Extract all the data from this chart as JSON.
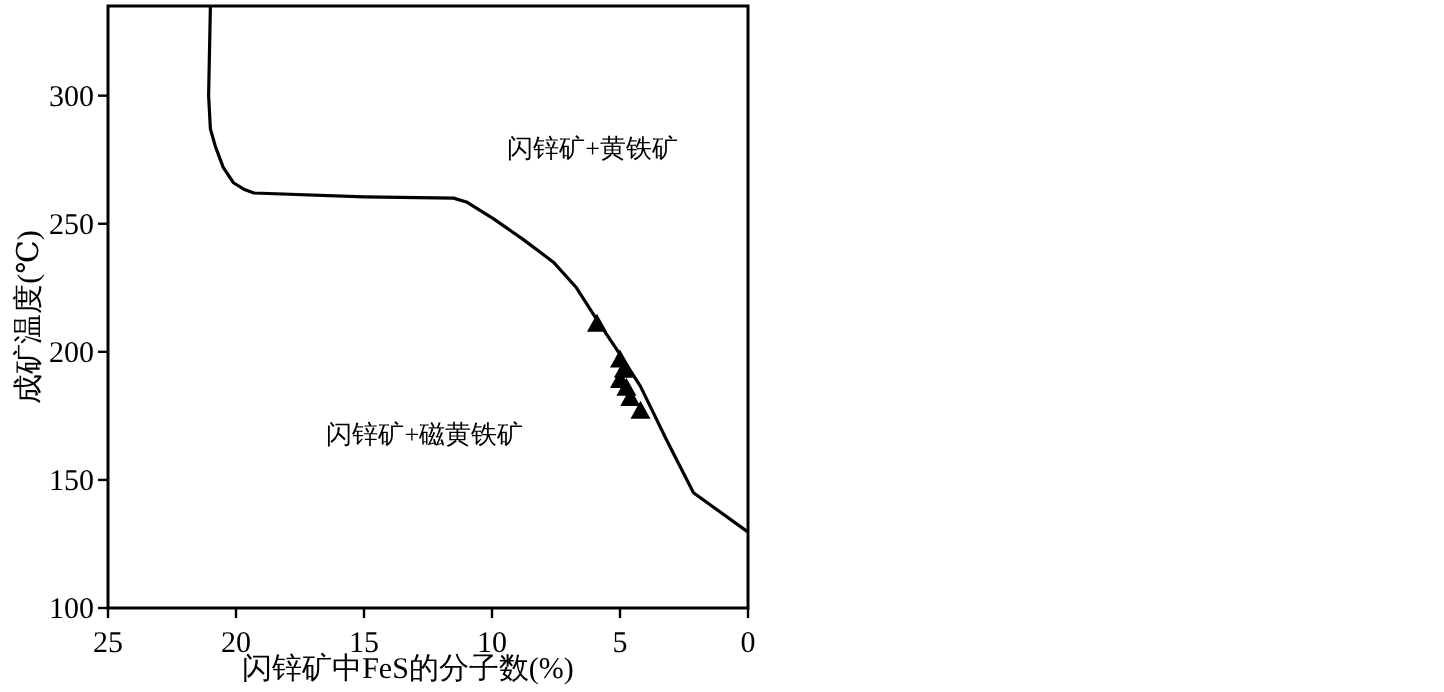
{
  "chart_data": {
    "type": "line",
    "xlabel": "闪锌矿中FeS的分子数(%)",
    "ylabel": "成矿温度(℃)",
    "xlim": [
      25,
      0
    ],
    "xticks": [
      25,
      20,
      15,
      10,
      5,
      0
    ],
    "ylim": [
      100,
      335
    ],
    "yticks": [
      100,
      150,
      200,
      250,
      300
    ],
    "grid": false,
    "series": [
      {
        "color": "#000000",
        "line_style": "solid",
        "x": [
          21.0,
          21.07,
          21.0,
          20.8,
          20.5,
          20.1,
          19.7,
          19.3,
          15.0,
          11.5,
          11.0,
          9.95,
          8.8,
          7.6,
          6.7,
          5.9,
          5.0,
          4.2,
          3.18,
          2.13,
          0.05
        ],
        "values": [
          335,
          300,
          287,
          280,
          272,
          266,
          263.5,
          262,
          260.5,
          260,
          258.5,
          252,
          244,
          235,
          225,
          212.5,
          199,
          186.5,
          165.6,
          145,
          130
        ]
      },
      {
        "type": "scatter",
        "color": "#000000",
        "marker": "triangle",
        "x": [
          5.9,
          5.0,
          4.85,
          5.0,
          4.75,
          4.6,
          4.2
        ],
        "values": [
          211,
          197,
          193,
          189,
          186,
          182,
          177
        ]
      }
    ],
    "annotations": [
      "闪锌矿+黄铁矿",
      "闪锌矿+磁黄铁矿"
    ]
  }
}
